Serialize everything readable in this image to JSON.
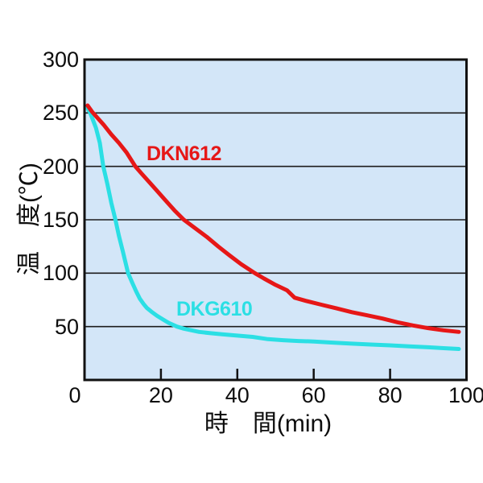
{
  "chart_data": {
    "type": "line",
    "xlabel": "時　間(min)",
    "ylabel": "温　度(℃)",
    "xlim": [
      0,
      100
    ],
    "ylim": [
      0,
      300
    ],
    "x_ticks": [
      0,
      20,
      40,
      60,
      80,
      100
    ],
    "y_ticks": [
      50,
      100,
      150,
      200,
      250,
      300
    ],
    "grid": "horizontal",
    "legend_position": "inline-labels",
    "colors": {
      "plot_background": "#d3e6f8",
      "page_background": "#ffffff",
      "axis_border": "#111111",
      "gridline": "#1c1c1c",
      "tick_text": "#0d0d0d"
    },
    "series": [
      {
        "name": "DKN612",
        "color": "#e61717",
        "x": [
          0.8,
          2,
          3.5,
          5,
          7,
          9,
          11,
          13.3,
          15,
          17,
          19,
          21,
          23.5,
          26,
          29,
          32,
          35,
          38,
          41,
          44.6,
          47,
          50,
          53,
          55,
          58,
          62,
          66,
          70,
          74,
          78,
          82,
          86,
          90,
          94,
          98
        ],
        "y": [
          257,
          251,
          245,
          239,
          230,
          222,
          213,
          200,
          193,
          185,
          177,
          169,
          159,
          150,
          142,
          134,
          125,
          116.5,
          108.5,
          100,
          95,
          89,
          84,
          77,
          74,
          70.5,
          67,
          63.5,
          60.5,
          57.5,
          54,
          51,
          48.5,
          46.5,
          45
        ]
      },
      {
        "name": "DKG610",
        "color": "#2bdfe4",
        "x": [
          0.7,
          1.5,
          3,
          4,
          4.9,
          6,
          7,
          8.1,
          9,
          10,
          11.4,
          12.5,
          13.5,
          14.5,
          15.5,
          16.3,
          17.5,
          19,
          20.6,
          22,
          24.2,
          26,
          28,
          30,
          33,
          36,
          40,
          44,
          48,
          52,
          56,
          60,
          65,
          70,
          75,
          80,
          85,
          90,
          94,
          98
        ],
        "y": [
          255,
          250,
          236,
          222,
          200,
          183,
          166,
          150,
          135,
          121,
          100,
          91,
          83,
          76,
          71,
          67.5,
          64,
          60,
          56.5,
          53.5,
          50,
          48,
          46.5,
          45,
          43.8,
          42.8,
          41.5,
          40.3,
          38.2,
          37.2,
          36.5,
          36,
          35,
          34,
          33.2,
          32.4,
          31.5,
          30.6,
          29.8,
          29
        ]
      }
    ]
  }
}
